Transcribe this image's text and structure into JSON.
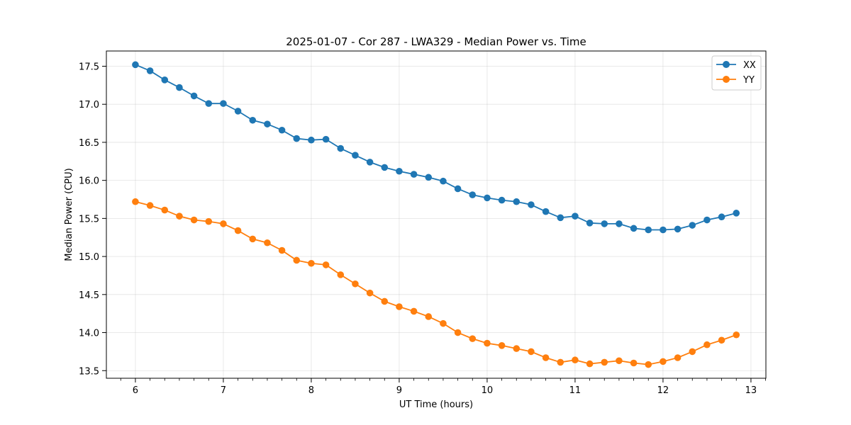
{
  "chart_data": {
    "type": "line",
    "title": "2025-01-07 - Cor 287 - LWA329 - Median Power vs. Time",
    "xlabel": "UT Time (hours)",
    "ylabel": "Median Power (CPU)",
    "xlim": [
      5.67,
      13.17
    ],
    "ylim": [
      13.4,
      17.7
    ],
    "xticks": [
      6,
      7,
      8,
      9,
      10,
      11,
      12,
      13
    ],
    "xtick_labels": [
      "6",
      "7",
      "8",
      "9",
      "10",
      "11",
      "12",
      "13"
    ],
    "yticks": [
      13.5,
      14.0,
      14.5,
      15.0,
      15.5,
      16.0,
      16.5,
      17.0,
      17.5
    ],
    "ytick_labels": [
      "13.5",
      "14.0",
      "14.5",
      "15.0",
      "15.5",
      "16.0",
      "16.5",
      "17.0",
      "17.5"
    ],
    "grid": true,
    "legend_position": "top-right",
    "x": [
      6.0,
      6.1667,
      6.3333,
      6.5,
      6.6667,
      6.8333,
      7.0,
      7.1667,
      7.3333,
      7.5,
      7.6667,
      7.8333,
      8.0,
      8.1667,
      8.3333,
      8.5,
      8.6667,
      8.8333,
      9.0,
      9.1667,
      9.3333,
      9.5,
      9.6667,
      9.8333,
      10.0,
      10.1667,
      10.3333,
      10.5,
      10.6667,
      10.8333,
      11.0,
      11.1667,
      11.3333,
      11.5,
      11.6667,
      11.8333,
      12.0,
      12.1667,
      12.3333,
      12.5,
      12.6667,
      12.8333
    ],
    "series": [
      {
        "name": "XX",
        "color": "#1f77b4",
        "values": [
          17.52,
          17.44,
          17.32,
          17.22,
          17.11,
          17.01,
          17.01,
          16.91,
          16.79,
          16.74,
          16.66,
          16.55,
          16.53,
          16.54,
          16.42,
          16.33,
          16.24,
          16.17,
          16.12,
          16.08,
          16.04,
          15.99,
          15.89,
          15.81,
          15.77,
          15.74,
          15.72,
          15.68,
          15.59,
          15.51,
          15.53,
          15.44,
          15.43,
          15.43,
          15.37,
          15.35,
          15.35,
          15.36,
          15.41,
          15.48,
          15.52,
          15.57
        ]
      },
      {
        "name": "YY",
        "color": "#ff7f0e",
        "values": [
          15.72,
          15.67,
          15.61,
          15.53,
          15.48,
          15.46,
          15.43,
          15.34,
          15.23,
          15.18,
          15.08,
          14.95,
          14.91,
          14.89,
          14.76,
          14.64,
          14.52,
          14.41,
          14.34,
          14.28,
          14.21,
          14.12,
          14.0,
          13.92,
          13.86,
          13.83,
          13.79,
          13.75,
          13.67,
          13.61,
          13.64,
          13.59,
          13.61,
          13.63,
          13.6,
          13.58,
          13.62,
          13.67,
          13.75,
          13.84,
          13.9,
          13.97
        ]
      }
    ]
  }
}
